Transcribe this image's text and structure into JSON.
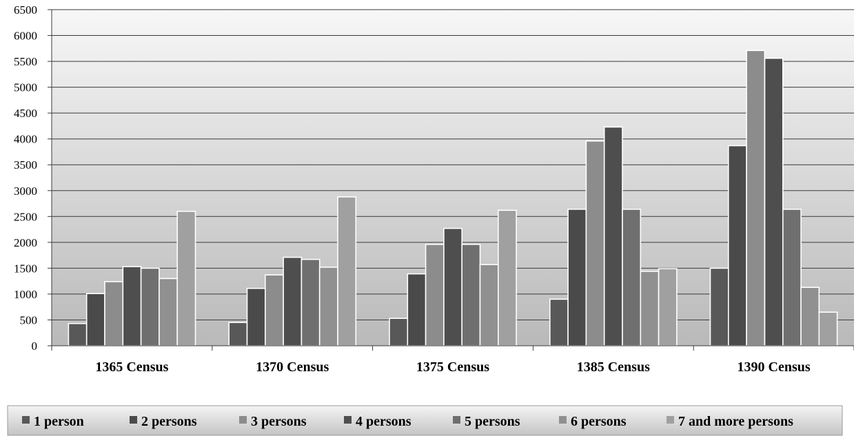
{
  "chart_data": {
    "type": "bar",
    "categories": [
      "1365 Census",
      "1370 Census",
      "1375 Census",
      "1385 Census",
      "1390 Census"
    ],
    "series": [
      {
        "name": "1 person",
        "values": [
          430,
          450,
          530,
          900,
          1500
        ],
        "color": "#585858"
      },
      {
        "name": "2 persons",
        "values": [
          1010,
          1110,
          1390,
          2640,
          3870
        ],
        "color": "#4a4a4a"
      },
      {
        "name": "3 persons",
        "values": [
          1240,
          1370,
          1960,
          3960,
          5710
        ],
        "color": "#8c8c8c"
      },
      {
        "name": "4 persons",
        "values": [
          1530,
          1710,
          2270,
          4230,
          5560
        ],
        "color": "#4e4e4e"
      },
      {
        "name": "5 persons",
        "values": [
          1500,
          1670,
          1960,
          2640,
          2640
        ],
        "color": "#6f6f6f"
      },
      {
        "name": "6 persons",
        "values": [
          1300,
          1520,
          1570,
          1440,
          1130
        ],
        "color": "#909090"
      },
      {
        "name": "7 and more persons",
        "values": [
          2600,
          2880,
          2620,
          1490,
          650
        ],
        "color": "#a0a0a0"
      }
    ],
    "ylim": [
      0,
      6500
    ],
    "yticks": [
      "0",
      "500",
      "1000",
      "1500",
      "2000",
      "2500",
      "3000",
      "3500",
      "4000",
      "4500",
      "5000",
      "5500",
      "6000",
      "6500"
    ],
    "grid": true,
    "legend_position": "bottom"
  }
}
